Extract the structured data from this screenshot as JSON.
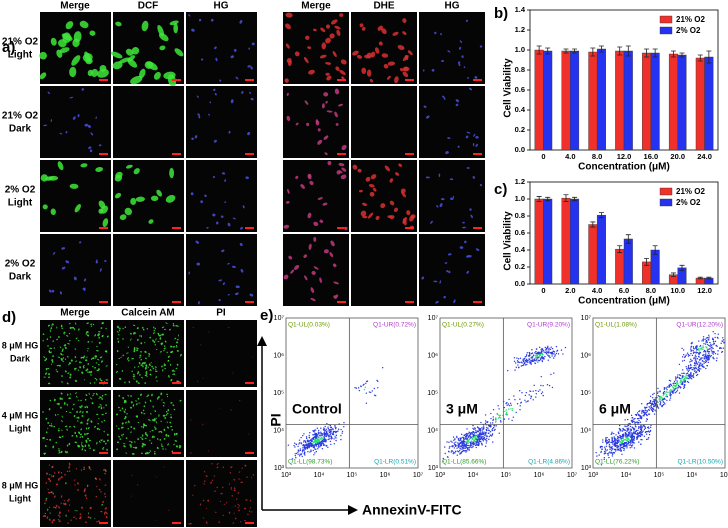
{
  "panel_labels": [
    "a)",
    "b)",
    "c)",
    "d)",
    "e)"
  ],
  "panel_a": {
    "left_columns": [
      "Merge",
      "DCF",
      "HG"
    ],
    "right_columns": [
      "Merge",
      "DHE",
      "HG"
    ],
    "rows": [
      [
        "21% O2",
        "Light"
      ],
      [
        "21% O2",
        "Dark"
      ],
      [
        "2% O2",
        "Light"
      ],
      [
        "2% O2",
        "Dark"
      ]
    ]
  },
  "panel_d": {
    "columns": [
      "Merge",
      "Calcein AM",
      "PI"
    ],
    "rows": [
      [
        "8 μM HG",
        "Dark"
      ],
      [
        "4 μM HG",
        "Light"
      ],
      [
        "8 μM HG",
        "Light"
      ]
    ]
  },
  "panel_e": {
    "y_label": "PI",
    "x_label": "AnnexinV-FITC",
    "ticks": [
      "10³",
      "10⁴",
      "10⁵",
      "10⁶",
      "10⁷"
    ],
    "plots": [
      {
        "title": "Control",
        "quadrants": [
          "Q1-UL(0.03%)",
          "Q1-UR(0.72%)",
          "Q1-LL(98.73%)",
          "Q1-LR(0.51%)"
        ]
      },
      {
        "title": "3 μM",
        "quadrants": [
          "Q1-UL(0.27%)",
          "Q1-UR(9.20%)",
          "Q1-LL(85.66%)",
          "Q1-LR(4.86%)"
        ]
      },
      {
        "title": "6 μM",
        "quadrants": [
          "Q1-UL(1.08%)",
          "Q1-UR(12.20%)",
          "Q1-LL(76.22%)",
          "Q1-LR(10.50%)"
        ]
      }
    ]
  },
  "chart_data": [
    {
      "type": "bar",
      "y_label": "Cell Viability",
      "x_label": "Concentration (μM)",
      "categories": [
        "0",
        "4.0",
        "8.0",
        "12.0",
        "16.0",
        "20.0",
        "24.0"
      ],
      "series": [
        {
          "name": "21% O2",
          "color": "#f0302a",
          "values": [
            1.0,
            0.99,
            0.98,
            0.99,
            0.97,
            0.96,
            0.92
          ],
          "errors": [
            0.04,
            0.02,
            0.04,
            0.04,
            0.04,
            0.03,
            0.03
          ]
        },
        {
          "name": "2% O2",
          "color": "#2533f0",
          "values": [
            0.99,
            0.99,
            1.01,
            0.99,
            0.97,
            0.95,
            0.93
          ],
          "errors": [
            0.03,
            0.02,
            0.03,
            0.05,
            0.04,
            0.02,
            0.06
          ]
        }
      ],
      "ylim": [
        0,
        1.4
      ],
      "yticks": [
        {
          "value": 0,
          "label": "0.0"
        },
        {
          "value": 0.2,
          "label": "0.2"
        },
        {
          "value": 0.4,
          "label": "0.4"
        },
        {
          "value": 0.6,
          "label": "0.6"
        },
        {
          "value": 0.8,
          "label": "0.8"
        },
        {
          "value": 1,
          "label": "1.0"
        },
        {
          "value": 1.2,
          "label": "1.2"
        },
        {
          "value": 1.4,
          "label": "1.4"
        }
      ],
      "legend": "upper right"
    },
    {
      "type": "bar",
      "y_label": "Cell Viability",
      "x_label": "Concentration (μM)",
      "categories": [
        "0",
        "2.0",
        "4.0",
        "6.0",
        "8.0",
        "10.0",
        "12.0"
      ],
      "series": [
        {
          "name": "21% O2",
          "color": "#f0302a",
          "values": [
            1.0,
            1.01,
            0.7,
            0.41,
            0.26,
            0.11,
            0.07
          ],
          "errors": [
            0.03,
            0.04,
            0.03,
            0.04,
            0.04,
            0.02,
            0.01
          ]
        },
        {
          "name": "2% O2",
          "color": "#2533f0",
          "values": [
            1.0,
            1.0,
            0.81,
            0.53,
            0.4,
            0.19,
            0.07
          ],
          "errors": [
            0.02,
            0.02,
            0.03,
            0.05,
            0.05,
            0.03,
            0.01
          ]
        }
      ],
      "ylim": [
        0,
        1.2
      ],
      "yticks": [
        {
          "value": 0,
          "label": "0.0"
        },
        {
          "value": 0.2,
          "label": "0.2"
        },
        {
          "value": 0.4,
          "label": "0.4"
        },
        {
          "value": 0.6,
          "label": "0.6"
        },
        {
          "value": 0.8,
          "label": "0.8"
        },
        {
          "value": 1,
          "label": "1.0"
        },
        {
          "value": 1.2,
          "label": "1.2"
        }
      ],
      "legend": "upper right"
    }
  ]
}
